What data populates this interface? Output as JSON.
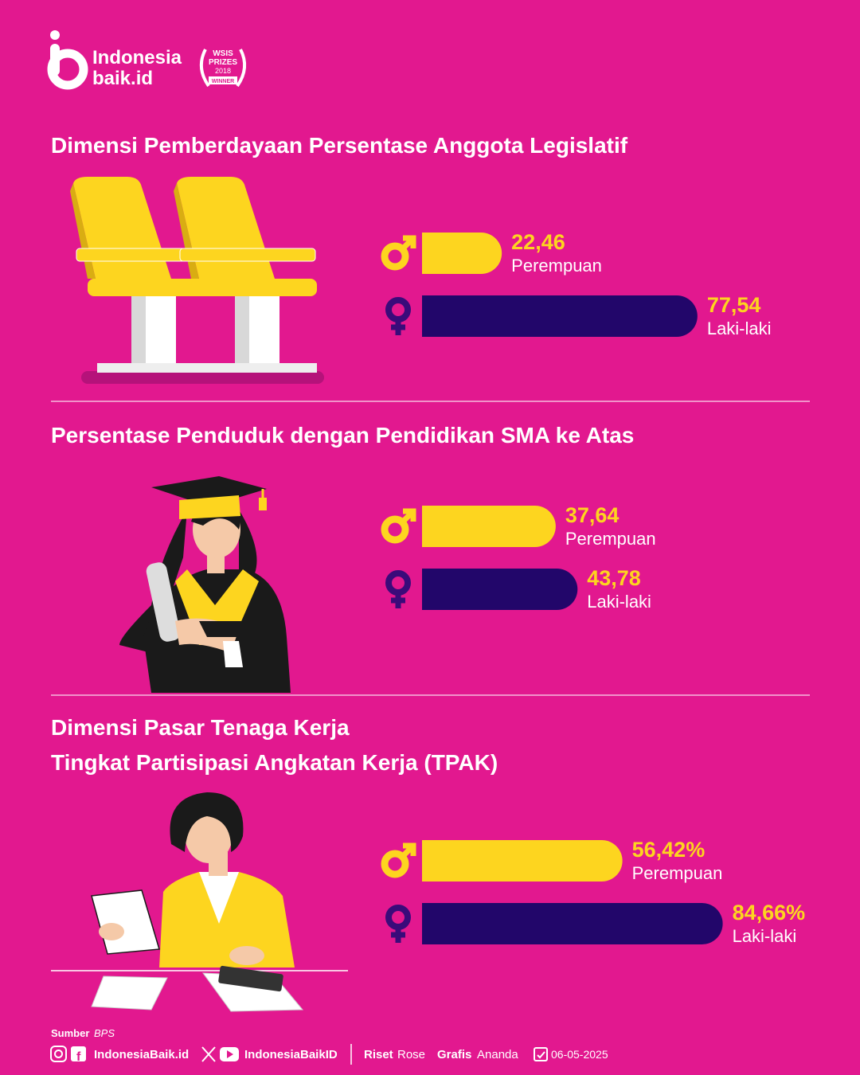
{
  "header": {
    "brand_line1": "Indonesia",
    "brand_line2": "baik.id",
    "badge_line1": "WSIS",
    "badge_line2": "PRIZES",
    "badge_line3": "2018",
    "badge_line4": "WINNER"
  },
  "chart_data": [
    {
      "type": "bar",
      "orientation": "horizontal",
      "title": "Dimensi Pemberdayaan Persentase Anggota Legislatif",
      "categories": [
        "Perempuan",
        "Laki-laki"
      ],
      "values": [
        22.46,
        77.54
      ],
      "value_labels": [
        "22,46",
        "77,54"
      ],
      "colors": [
        "#fdd51f",
        "#22066a"
      ]
    },
    {
      "type": "bar",
      "orientation": "horizontal",
      "title": "Persentase Penduduk dengan Pendidikan SMA ke Atas",
      "categories": [
        "Perempuan",
        "Laki-laki"
      ],
      "values": [
        37.64,
        43.78
      ],
      "value_labels": [
        "37,64",
        "43,78"
      ],
      "colors": [
        "#fdd51f",
        "#22066a"
      ]
    },
    {
      "type": "bar",
      "orientation": "horizontal",
      "title": "Dimensi Pasar Tenaga Kerja",
      "subtitle": "Tingkat Partisipasi Angkatan Kerja (TPAK)",
      "categories": [
        "Perempuan",
        "Laki-laki"
      ],
      "values": [
        56.42,
        84.66
      ],
      "value_labels": [
        "56,42%",
        "84,66%"
      ],
      "colors": [
        "#fdd51f",
        "#22066a"
      ]
    }
  ],
  "footer": {
    "source_label": "Sumber",
    "source": "BPS",
    "site": "IndonesiaBaik.id",
    "handle": "IndonesiaBaikID",
    "research_label": "Riset",
    "research": "Rose",
    "graphics_label": "Grafis",
    "graphics": "Ananda",
    "date": "06-05-2025"
  }
}
